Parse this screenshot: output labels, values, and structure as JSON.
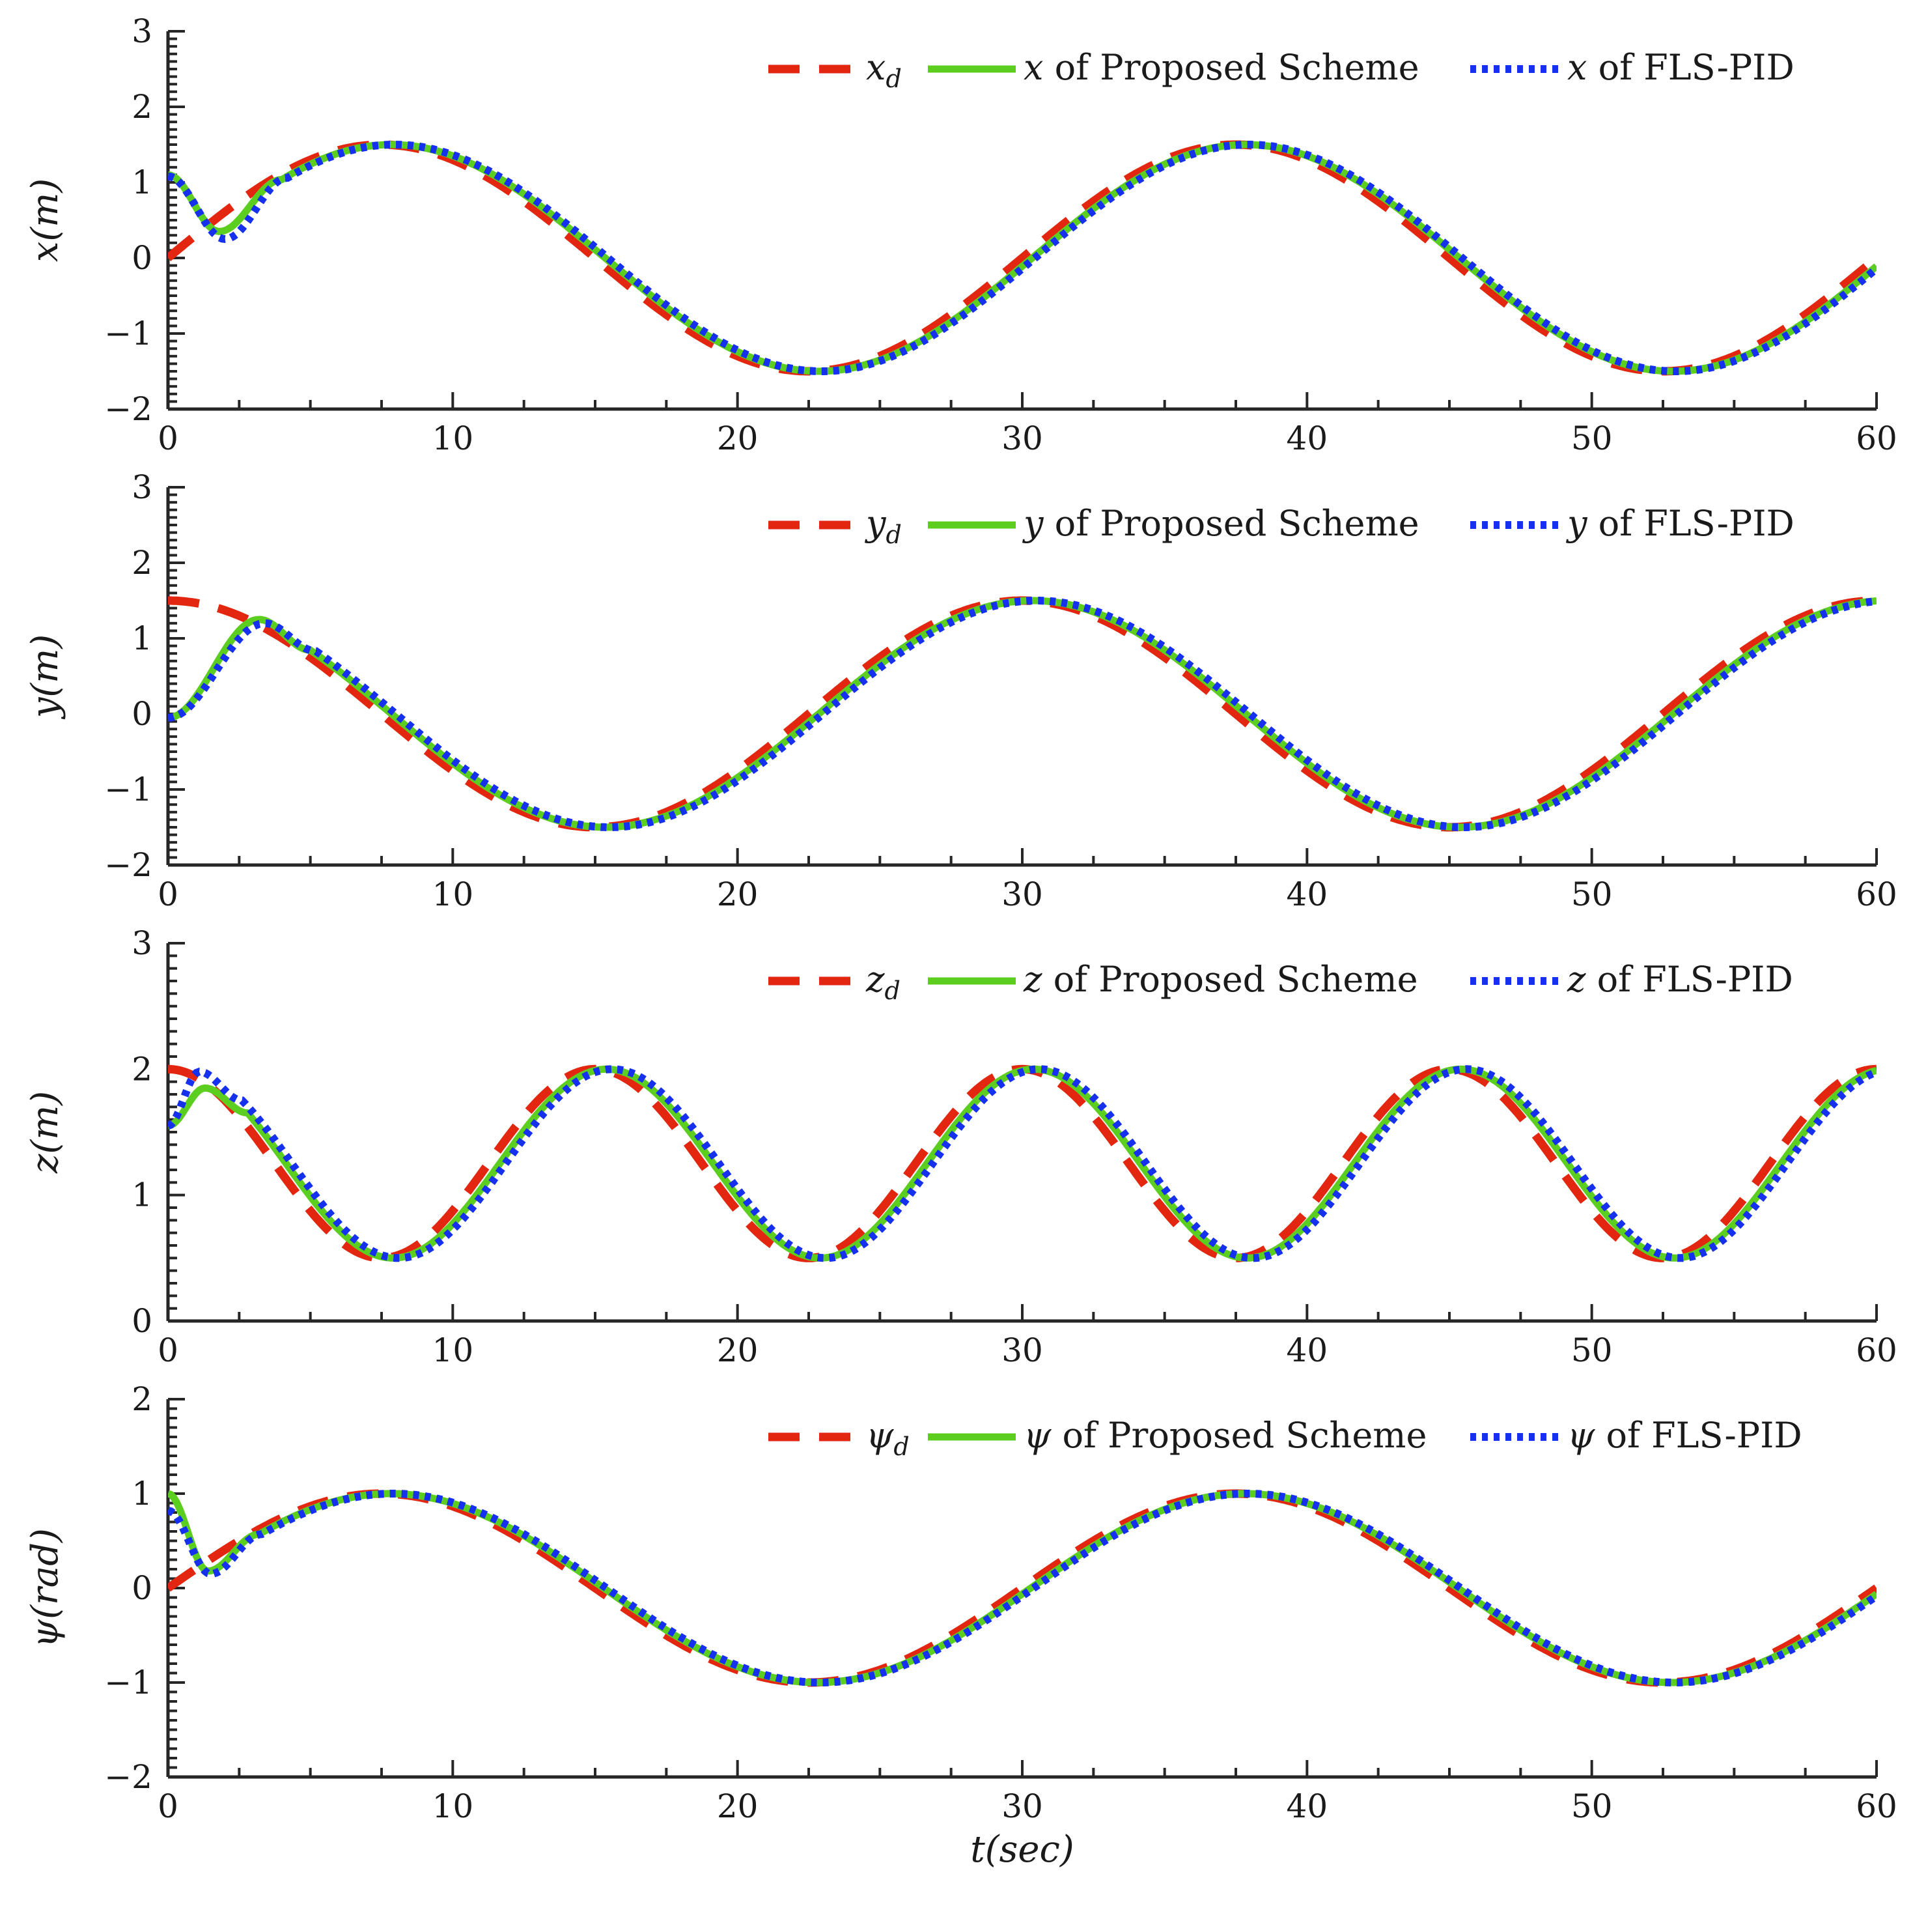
{
  "colors": {
    "desired": "#e3260f",
    "proposed": "#5cce1f",
    "fls_pid": "#1530ee",
    "axis": "#262626"
  },
  "chart_data": [
    {
      "type": "line",
      "ylabel": "x(m)",
      "xlabel": "",
      "xlim": [
        0,
        60
      ],
      "ylim": [
        -2,
        3
      ],
      "xticks": [
        0,
        10,
        20,
        30,
        40,
        50,
        60
      ],
      "yticks": [
        -2,
        -1,
        0,
        1,
        2,
        3
      ],
      "tick_labels_x": [
        "0",
        "10",
        "20",
        "30",
        "40",
        "50",
        "60"
      ],
      "tick_labels_y": [
        "−2",
        "−1",
        "0",
        "1",
        "2",
        "3"
      ],
      "legend": [
        {
          "symbol": "x",
          "sub": "d",
          "rest": ""
        },
        {
          "symbol": "x",
          "sub": "",
          "rest": " of Proposed Scheme"
        },
        {
          "symbol": "x",
          "sub": "",
          "rest": " of FLS-PID"
        }
      ],
      "signal": {
        "func": "sin",
        "amp": 1.5,
        "offset": 0,
        "period": 30,
        "phase": 0
      },
      "proposed": {
        "start": 1.1,
        "dip": 0.35,
        "dip_t": 1.8,
        "settle_t": 4.0,
        "lag": 0.35
      },
      "fls_pid": {
        "start": 1.08,
        "dip": 0.25,
        "dip_t": 2.0,
        "settle_t": 4.2,
        "lag": 0.45
      },
      "series": [
        {
          "name": "x_d",
          "t_samples": [
            0,
            7.5,
            15,
            22.5,
            30,
            37.5,
            45,
            52.5,
            60
          ],
          "values": [
            0,
            1.5,
            0,
            -1.5,
            0,
            1.5,
            0,
            -1.5,
            0
          ]
        },
        {
          "name": "x of Proposed Scheme",
          "t_samples": [
            0,
            1.8,
            4,
            7.5,
            22.8,
            37.8,
            52.8,
            60
          ],
          "values": [
            1.1,
            0.35,
            0.9,
            1.48,
            -1.5,
            1.48,
            -1.5,
            -0.15
          ]
        },
        {
          "name": "x of FLS-PID",
          "t_samples": [
            0,
            2,
            4.2,
            7.6,
            22.9,
            37.9,
            52.9,
            60
          ],
          "values": [
            1.08,
            0.25,
            0.9,
            1.48,
            -1.52,
            1.48,
            -1.52,
            -0.18
          ]
        }
      ]
    },
    {
      "type": "line",
      "ylabel": "y(m)",
      "xlabel": "",
      "xlim": [
        0,
        60
      ],
      "ylim": [
        -2,
        3
      ],
      "xticks": [
        0,
        10,
        20,
        30,
        40,
        50,
        60
      ],
      "yticks": [
        -2,
        -1,
        0,
        1,
        2,
        3
      ],
      "tick_labels_x": [
        "0",
        "10",
        "20",
        "30",
        "40",
        "50",
        "60"
      ],
      "tick_labels_y": [
        "−2",
        "−1",
        "0",
        "1",
        "2",
        "3"
      ],
      "legend": [
        {
          "symbol": "y",
          "sub": "d",
          "rest": ""
        },
        {
          "symbol": "y",
          "sub": "",
          "rest": " of Proposed Scheme"
        },
        {
          "symbol": "y",
          "sub": "",
          "rest": " of FLS-PID"
        }
      ],
      "signal": {
        "func": "cos",
        "amp": 1.5,
        "offset": 0,
        "period": 30,
        "phase": 0
      },
      "proposed": {
        "start": -0.05,
        "dip": 1.25,
        "dip_t": 3.2,
        "settle_t": 5.0,
        "lag": 0.35
      },
      "fls_pid": {
        "start": -0.05,
        "dip": 1.2,
        "dip_t": 3.4,
        "settle_t": 5.2,
        "lag": 0.5
      },
      "series": [
        {
          "name": "y_d",
          "t_samples": [
            0,
            7.5,
            15,
            22.5,
            30,
            37.5,
            45,
            52.5,
            60
          ],
          "values": [
            1.5,
            0,
            -1.5,
            0,
            1.5,
            0,
            -1.5,
            0,
            1.5
          ]
        },
        {
          "name": "y of Proposed Scheme",
          "t_samples": [
            0,
            3.2,
            15.3,
            30.3,
            45.3,
            60
          ],
          "values": [
            -0.05,
            1.25,
            -1.5,
            1.48,
            -1.5,
            1.45
          ]
        },
        {
          "name": "y of FLS-PID",
          "t_samples": [
            0,
            3.4,
            15.5,
            30.5,
            45.5,
            60
          ],
          "values": [
            -0.05,
            1.2,
            -1.52,
            1.48,
            -1.52,
            1.42
          ]
        }
      ]
    },
    {
      "type": "line",
      "ylabel": "z(m)",
      "xlabel": "",
      "xlim": [
        0,
        60
      ],
      "ylim": [
        0,
        3
      ],
      "xticks": [
        0,
        10,
        20,
        30,
        40,
        50,
        60
      ],
      "yticks": [
        0,
        1,
        2,
        3
      ],
      "tick_labels_x": [
        "0",
        "10",
        "20",
        "30",
        "40",
        "50",
        "60"
      ],
      "tick_labels_y": [
        "0",
        "1",
        "2",
        "3"
      ],
      "legend": [
        {
          "symbol": "z",
          "sub": "d",
          "rest": ""
        },
        {
          "symbol": "z",
          "sub": "",
          "rest": " of Proposed Scheme"
        },
        {
          "symbol": "z",
          "sub": "",
          "rest": " of FLS-PID"
        }
      ],
      "signal": {
        "func": "cos",
        "amp": 0.75,
        "offset": 1.25,
        "period": 15,
        "phase": 0
      },
      "proposed": {
        "start": 1.55,
        "dip": 1.85,
        "dip_t": 1.3,
        "settle_t": 2.8,
        "lag": 0.4
      },
      "fls_pid": {
        "start": 1.55,
        "dip": 1.98,
        "dip_t": 1.1,
        "settle_t": 2.6,
        "lag": 0.6
      },
      "series": [
        {
          "name": "z_d",
          "t_samples": [
            0,
            7.5,
            15,
            22.5,
            30,
            37.5,
            45,
            52.5,
            60
          ],
          "values": [
            2.0,
            0.5,
            2.0,
            0.5,
            2.0,
            0.5,
            2.0,
            0.5,
            2.0
          ]
        },
        {
          "name": "z of Proposed Scheme",
          "t_samples": [
            0,
            1.3,
            7.9,
            15.4,
            22.9,
            30.4,
            37.9,
            45.4,
            52.9,
            60
          ],
          "values": [
            1.55,
            1.85,
            0.52,
            1.97,
            0.52,
            1.97,
            0.52,
            1.97,
            0.52,
            1.95
          ]
        },
        {
          "name": "z of FLS-PID",
          "t_samples": [
            0,
            1.1,
            8.1,
            15.6,
            23.1,
            30.6,
            38.1,
            45.6,
            53.1,
            60
          ],
          "values": [
            1.55,
            1.98,
            0.48,
            2.02,
            0.48,
            2.02,
            0.48,
            2.02,
            0.48,
            2.0
          ]
        }
      ]
    },
    {
      "type": "line",
      "ylabel": "ψ(rad)",
      "xlabel": "t(sec)",
      "xlim": [
        0,
        60
      ],
      "ylim": [
        -2,
        2
      ],
      "xticks": [
        0,
        10,
        20,
        30,
        40,
        50,
        60
      ],
      "yticks": [
        -2,
        -1,
        0,
        1,
        2
      ],
      "tick_labels_x": [
        "0",
        "10",
        "20",
        "30",
        "40",
        "50",
        "60"
      ],
      "tick_labels_y": [
        "−2",
        "−1",
        "0",
        "1",
        "2"
      ],
      "legend": [
        {
          "symbol": "ψ",
          "sub": "d",
          "rest": ""
        },
        {
          "symbol": "ψ",
          "sub": "",
          "rest": " of Proposed Scheme"
        },
        {
          "symbol": "ψ",
          "sub": "",
          "rest": " of FLS-PID"
        }
      ],
      "signal": {
        "func": "sin",
        "amp": 1.0,
        "offset": 0,
        "period": 30,
        "phase": 0
      },
      "proposed": {
        "start": 1.0,
        "dip": 0.18,
        "dip_t": 1.4,
        "settle_t": 3.2,
        "lag": 0.3
      },
      "fls_pid": {
        "start": 0.82,
        "dip": 0.15,
        "dip_t": 1.5,
        "settle_t": 3.3,
        "lag": 0.4
      },
      "series": [
        {
          "name": "ψ_d",
          "t_samples": [
            0,
            7.5,
            15,
            22.5,
            30,
            37.5,
            45,
            52.5,
            60
          ],
          "values": [
            0,
            1,
            0,
            -1,
            0,
            1,
            0,
            -1,
            0
          ]
        },
        {
          "name": "ψ of Proposed Scheme",
          "t_samples": [
            0,
            1.4,
            7.8,
            22.8,
            37.8,
            52.8,
            60
          ],
          "values": [
            1.0,
            0.18,
            1.0,
            -1.0,
            1.0,
            -1.0,
            -0.08
          ]
        },
        {
          "name": "ψ of FLS-PID",
          "t_samples": [
            0,
            1.5,
            7.9,
            22.9,
            37.9,
            52.9,
            60
          ],
          "values": [
            0.82,
            0.15,
            1.0,
            -1.0,
            1.0,
            -1.0,
            -0.1
          ]
        }
      ]
    }
  ]
}
